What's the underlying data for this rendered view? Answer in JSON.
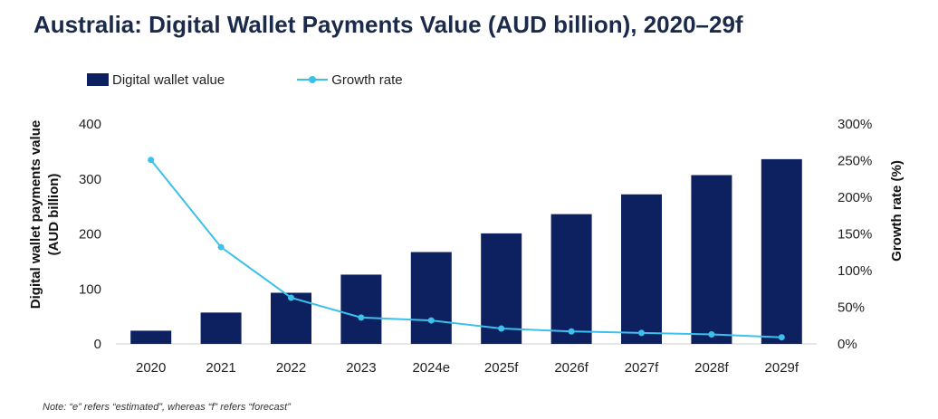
{
  "title": "Australia: Digital Wallet Payments Value (AUD billion), 2020–29f",
  "note": "Note: “e” refers “estimated”, whereas “f” refers “forecast”",
  "legend": {
    "bar_label": "Digital wallet value",
    "line_label": "Growth rate"
  },
  "colors": {
    "bar": "#0d2160",
    "line": "#3cc0ec",
    "axis": "#cccccc",
    "text": "#222222"
  },
  "chart_data": {
    "type": "bar",
    "title": "Australia: Digital Wallet Payments Value (AUD billion), 2020–29f",
    "categories": [
      "2020",
      "2021",
      "2022",
      "2023",
      "2024e",
      "2025f",
      "2026f",
      "2027f",
      "2028f",
      "2029f"
    ],
    "series": [
      {
        "name": "Digital wallet value",
        "type": "bar",
        "axis": "left",
        "values": [
          24,
          57,
          93,
          126,
          167,
          201,
          236,
          272,
          307,
          336
        ]
      },
      {
        "name": "Growth rate",
        "type": "line",
        "axis": "right",
        "unit": "%",
        "values": [
          251,
          132,
          63,
          36,
          32,
          21,
          17,
          15,
          13,
          9
        ]
      }
    ],
    "ylabel": "Digital wallet payments value (AUD billion)",
    "ylabel_lines": [
      "Digital wallet payments value",
      "(AUD billion)"
    ],
    "y2label": "Growth rate (%)",
    "ylim": [
      0,
      400
    ],
    "yticks": [
      0,
      100,
      200,
      300,
      400
    ],
    "y2lim": [
      0,
      300
    ],
    "y2ticks": [
      "0%",
      "50%",
      "100%",
      "150%",
      "200%",
      "250%",
      "300%"
    ],
    "grid": false,
    "legend_position": "top-left"
  }
}
